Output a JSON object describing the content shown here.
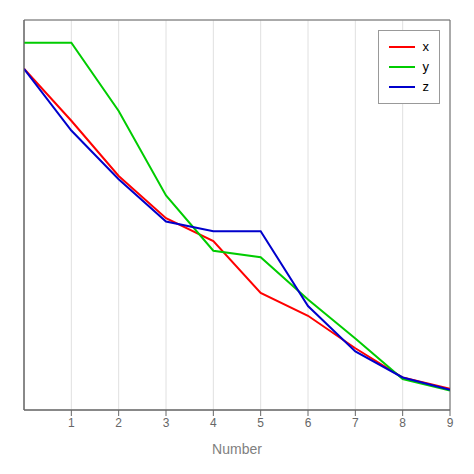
{
  "chart_data": {
    "type": "line",
    "xlabel": "Number",
    "x": [
      0,
      1,
      2,
      3,
      4,
      5,
      6,
      7,
      8,
      9
    ],
    "series": [
      {
        "name": "x",
        "color": "#ff0000",
        "values": [
          10.0,
          8.4,
          6.7,
          5.4,
          4.7,
          3.1,
          2.4,
          1.4,
          0.5,
          0.15
        ]
      },
      {
        "name": "y",
        "color": "#00cc00",
        "values": [
          10.8,
          10.8,
          8.7,
          6.1,
          4.4,
          4.2,
          2.9,
          1.7,
          0.45,
          0.1
        ]
      },
      {
        "name": "z",
        "color": "#0000cc",
        "values": [
          10.0,
          8.1,
          6.6,
          5.3,
          5.0,
          5.0,
          2.7,
          1.3,
          0.5,
          0.12
        ]
      }
    ],
    "xlim": [
      0,
      9
    ],
    "xticks": [
      1,
      2,
      3,
      4,
      5,
      6,
      7,
      8,
      9
    ],
    "ylim": [
      -0.5,
      11.5
    ],
    "yticks": [
      0,
      1.375,
      2.75,
      4.125,
      5.5,
      6.875,
      8.25,
      9.625,
      11
    ],
    "grid": true,
    "legend": "upper right",
    "tick_labels": "x"
  }
}
